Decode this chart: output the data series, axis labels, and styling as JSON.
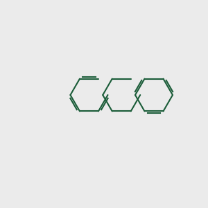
{
  "background_color": "#ebebeb",
  "bond_color": "#1a5c38",
  "oxygen_color": "#ff0000",
  "lw": 1.5,
  "figsize": [
    3.0,
    3.0
  ],
  "dpi": 100
}
